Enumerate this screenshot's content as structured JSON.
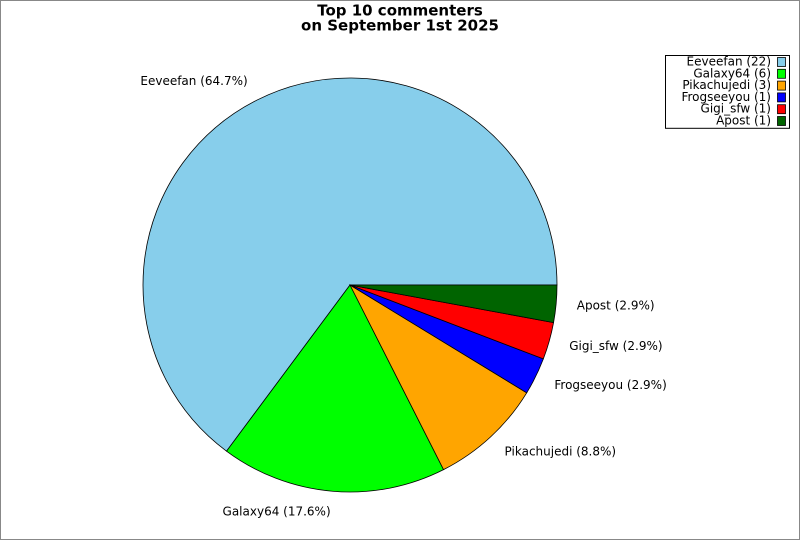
{
  "chart_data": {
    "type": "pie",
    "title": [
      "Top 10 commenters",
      "on September 1st 2025"
    ],
    "categories": [
      "Eeveefan (22)",
      "Galaxy64 (6)",
      "Pikachujedi (3)",
      "Frogseeyou (1)",
      "Gigi_sfw (1)",
      "Apost (1)"
    ],
    "values": [
      64.7,
      17.6,
      8.8,
      2.9,
      2.9,
      2.9
    ],
    "value_labels": [
      "Eeveefan (64.7%)",
      "Galaxy64 (17.6%)",
      "Pikachujedi (8.8%)",
      "Frogseeyou (2.9%)",
      "Gigi_sfw (2.9%)",
      "Apost (2.9%)"
    ],
    "colors": [
      "#87ceeb",
      "#00ff00",
      "#ffa500",
      "#0000ff",
      "#ff0000",
      "#006400"
    ],
    "legend": "upper right"
  }
}
